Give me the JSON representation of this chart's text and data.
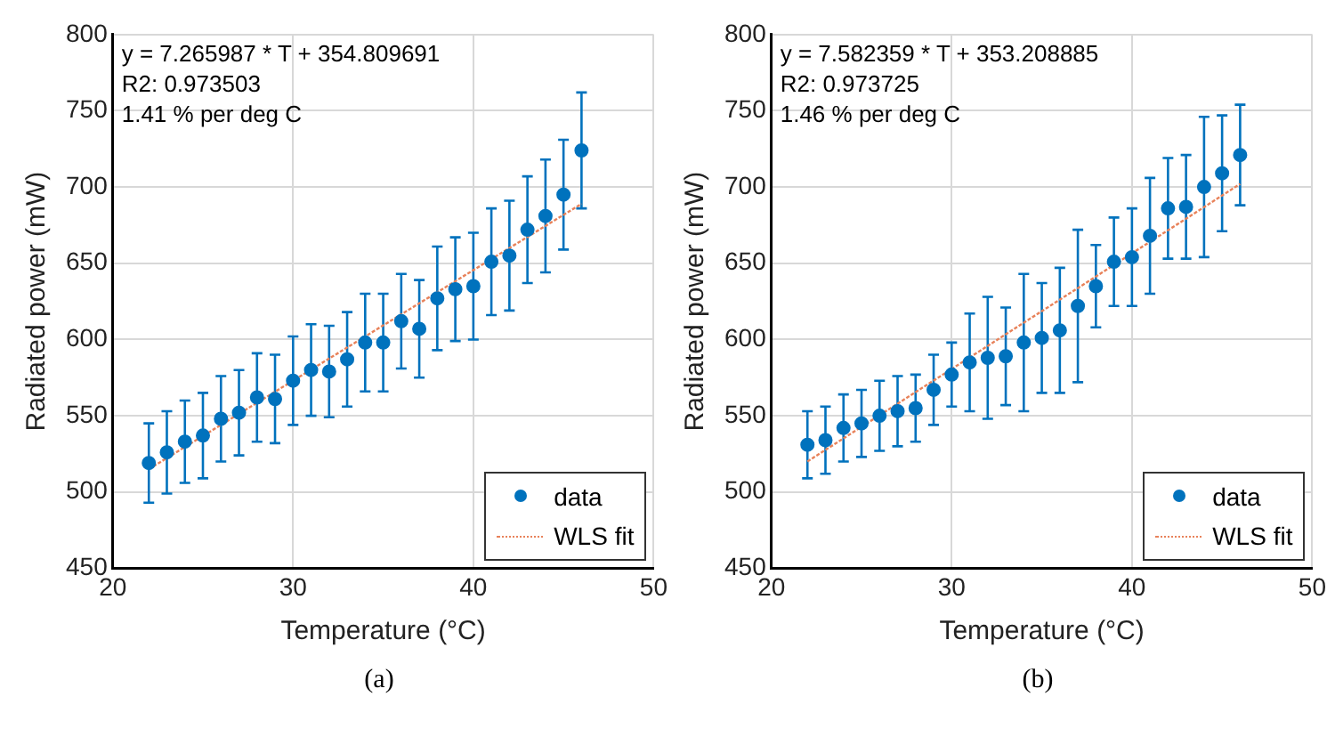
{
  "chart_data": [
    {
      "type": "scatter",
      "title": "(a)",
      "xlabel": "Temperature (°C)",
      "ylabel": "Radiated power (mW)",
      "annotations": [
        "y = 7.265987 * T + 354.809691",
        "R2: 0.973503",
        "1.41 % per deg C"
      ],
      "xlim": [
        20,
        50
      ],
      "xticks": [
        20,
        30,
        40,
        50
      ],
      "ylim": [
        450,
        800
      ],
      "yticks": [
        450,
        500,
        550,
        600,
        650,
        700,
        750,
        800
      ],
      "grid": true,
      "legend": "bottom right",
      "series": [
        {
          "name": "data",
          "type": "scatter",
          "marker": "circle",
          "color": "#0072bd",
          "x": [
            22,
            23,
            24,
            25,
            26,
            27,
            28,
            29,
            30,
            31,
            32,
            33,
            34,
            35,
            36,
            37,
            38,
            39,
            40,
            41,
            42,
            43,
            44,
            45,
            46
          ],
          "values": [
            519,
            526,
            533,
            537,
            548,
            552,
            562,
            561,
            573,
            580,
            579,
            587,
            598,
            598,
            612,
            607,
            627,
            633,
            635,
            651,
            655,
            672,
            681,
            695,
            724
          ],
          "errors": [
            26,
            27,
            27,
            28,
            28,
            28,
            29,
            29,
            29,
            30,
            30,
            31,
            32,
            32,
            31,
            32,
            34,
            34,
            35,
            35,
            36,
            35,
            37,
            36,
            38
          ]
        },
        {
          "name": "WLS fit",
          "type": "line",
          "marker": "none",
          "line_style": "dotted",
          "color": "#e8825a",
          "x": [
            22,
            46
          ],
          "values": [
            515,
            689
          ]
        }
      ]
    },
    {
      "type": "scatter",
      "title": "(b)",
      "xlabel": "Temperature (°C)",
      "ylabel": "Radiated power (mW)",
      "annotations": [
        "y = 7.582359 * T + 353.208885",
        "R2: 0.973725",
        "1.46 % per deg C"
      ],
      "xlim": [
        20,
        50
      ],
      "xticks": [
        20,
        30,
        40,
        50
      ],
      "ylim": [
        450,
        800
      ],
      "yticks": [
        450,
        500,
        550,
        600,
        650,
        700,
        750,
        800
      ],
      "grid": true,
      "legend": "bottom right",
      "series": [
        {
          "name": "data",
          "type": "scatter",
          "marker": "circle",
          "color": "#0072bd",
          "x": [
            22,
            23,
            24,
            25,
            26,
            27,
            28,
            29,
            30,
            31,
            32,
            33,
            34,
            35,
            36,
            37,
            38,
            39,
            40,
            41,
            42,
            43,
            44,
            45,
            46
          ],
          "values": [
            531,
            534,
            542,
            545,
            550,
            553,
            555,
            567,
            577,
            585,
            588,
            589,
            598,
            601,
            606,
            622,
            635,
            651,
            654,
            668,
            686,
            687,
            700,
            709,
            721
          ],
          "errors": [
            22,
            22,
            22,
            22,
            23,
            23,
            22,
            23,
            21,
            32,
            40,
            32,
            45,
            36,
            41,
            50,
            27,
            29,
            32,
            38,
            33,
            34,
            46,
            38,
            33
          ]
        },
        {
          "name": "WLS fit",
          "type": "line",
          "marker": "none",
          "line_style": "dotted",
          "color": "#e8825a",
          "x": [
            22,
            46
          ],
          "values": [
            520,
            702
          ]
        }
      ]
    }
  ]
}
